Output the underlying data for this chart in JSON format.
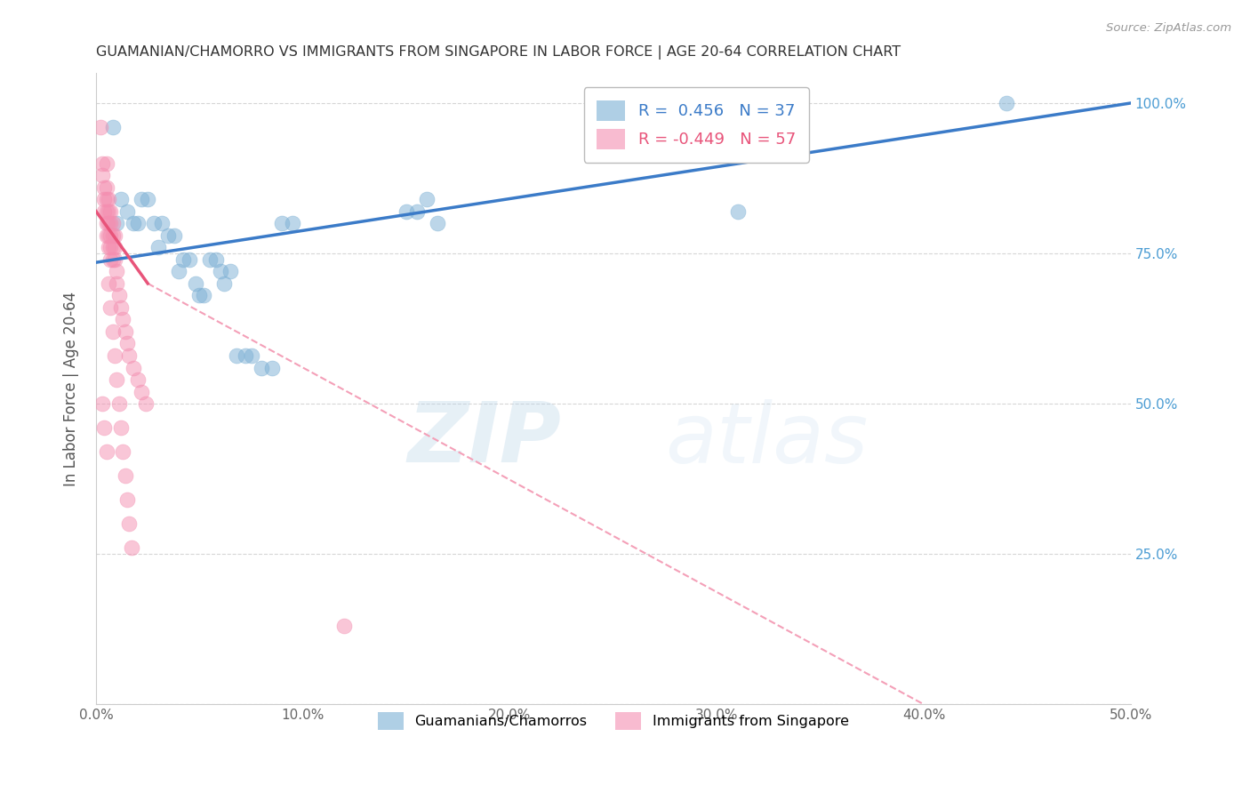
{
  "title": "GUAMANIAN/CHAMORRO VS IMMIGRANTS FROM SINGAPORE IN LABOR FORCE | AGE 20-64 CORRELATION CHART",
  "source": "Source: ZipAtlas.com",
  "ylabel_label": "In Labor Force | Age 20-64",
  "xlim": [
    0,
    0.5
  ],
  "ylim": [
    0,
    1.05
  ],
  "blue_R": 0.456,
  "blue_N": 37,
  "pink_R": -0.449,
  "pink_N": 57,
  "blue_scatter": [
    [
      0.008,
      0.96
    ],
    [
      0.01,
      0.8
    ],
    [
      0.012,
      0.84
    ],
    [
      0.015,
      0.82
    ],
    [
      0.018,
      0.8
    ],
    [
      0.02,
      0.8
    ],
    [
      0.022,
      0.84
    ],
    [
      0.025,
      0.84
    ],
    [
      0.028,
      0.8
    ],
    [
      0.03,
      0.76
    ],
    [
      0.032,
      0.8
    ],
    [
      0.035,
      0.78
    ],
    [
      0.038,
      0.78
    ],
    [
      0.04,
      0.72
    ],
    [
      0.042,
      0.74
    ],
    [
      0.045,
      0.74
    ],
    [
      0.048,
      0.7
    ],
    [
      0.05,
      0.68
    ],
    [
      0.052,
      0.68
    ],
    [
      0.055,
      0.74
    ],
    [
      0.058,
      0.74
    ],
    [
      0.06,
      0.72
    ],
    [
      0.062,
      0.7
    ],
    [
      0.065,
      0.72
    ],
    [
      0.068,
      0.58
    ],
    [
      0.072,
      0.58
    ],
    [
      0.075,
      0.58
    ],
    [
      0.08,
      0.56
    ],
    [
      0.085,
      0.56
    ],
    [
      0.09,
      0.8
    ],
    [
      0.095,
      0.8
    ],
    [
      0.15,
      0.82
    ],
    [
      0.155,
      0.82
    ],
    [
      0.16,
      0.84
    ],
    [
      0.165,
      0.8
    ],
    [
      0.31,
      0.82
    ],
    [
      0.44,
      1.0
    ]
  ],
  "pink_scatter": [
    [
      0.002,
      0.96
    ],
    [
      0.003,
      0.9
    ],
    [
      0.003,
      0.88
    ],
    [
      0.004,
      0.86
    ],
    [
      0.004,
      0.84
    ],
    [
      0.004,
      0.82
    ],
    [
      0.005,
      0.9
    ],
    [
      0.005,
      0.86
    ],
    [
      0.005,
      0.84
    ],
    [
      0.005,
      0.82
    ],
    [
      0.005,
      0.8
    ],
    [
      0.005,
      0.78
    ],
    [
      0.006,
      0.84
    ],
    [
      0.006,
      0.82
    ],
    [
      0.006,
      0.8
    ],
    [
      0.006,
      0.78
    ],
    [
      0.006,
      0.76
    ],
    [
      0.007,
      0.82
    ],
    [
      0.007,
      0.8
    ],
    [
      0.007,
      0.78
    ],
    [
      0.007,
      0.76
    ],
    [
      0.007,
      0.74
    ],
    [
      0.008,
      0.8
    ],
    [
      0.008,
      0.78
    ],
    [
      0.008,
      0.76
    ],
    [
      0.008,
      0.74
    ],
    [
      0.009,
      0.78
    ],
    [
      0.009,
      0.76
    ],
    [
      0.009,
      0.74
    ],
    [
      0.01,
      0.72
    ],
    [
      0.01,
      0.7
    ],
    [
      0.011,
      0.68
    ],
    [
      0.012,
      0.66
    ],
    [
      0.013,
      0.64
    ],
    [
      0.014,
      0.62
    ],
    [
      0.015,
      0.6
    ],
    [
      0.016,
      0.58
    ],
    [
      0.018,
      0.56
    ],
    [
      0.02,
      0.54
    ],
    [
      0.022,
      0.52
    ],
    [
      0.024,
      0.5
    ],
    [
      0.006,
      0.7
    ],
    [
      0.007,
      0.66
    ],
    [
      0.008,
      0.62
    ],
    [
      0.009,
      0.58
    ],
    [
      0.01,
      0.54
    ],
    [
      0.011,
      0.5
    ],
    [
      0.012,
      0.46
    ],
    [
      0.013,
      0.42
    ],
    [
      0.014,
      0.38
    ],
    [
      0.015,
      0.34
    ],
    [
      0.016,
      0.3
    ],
    [
      0.017,
      0.26
    ],
    [
      0.003,
      0.5
    ],
    [
      0.004,
      0.46
    ],
    [
      0.005,
      0.42
    ],
    [
      0.12,
      0.13
    ]
  ],
  "blue_line": [
    [
      0.0,
      0.735
    ],
    [
      0.5,
      1.0
    ]
  ],
  "pink_solid_line": [
    [
      0.0,
      0.82
    ],
    [
      0.025,
      0.7
    ]
  ],
  "pink_dash_line": [
    [
      0.025,
      0.7
    ],
    [
      0.4,
      0.0
    ]
  ],
  "watermark_zip": "ZIP",
  "watermark_atlas": "atlas",
  "legend_entries": [
    "Guamanians/Chamorros",
    "Immigrants from Singapore"
  ],
  "blue_color": "#7BAFD4",
  "pink_color": "#F48FB1",
  "blue_line_color": "#3B7BC8",
  "pink_line_color": "#E8547A",
  "pink_dash_color": "#F4A0B8",
  "grid_color": "#CCCCCC",
  "right_axis_color": "#4B9CD3",
  "title_color": "#333333",
  "source_color": "#999999"
}
